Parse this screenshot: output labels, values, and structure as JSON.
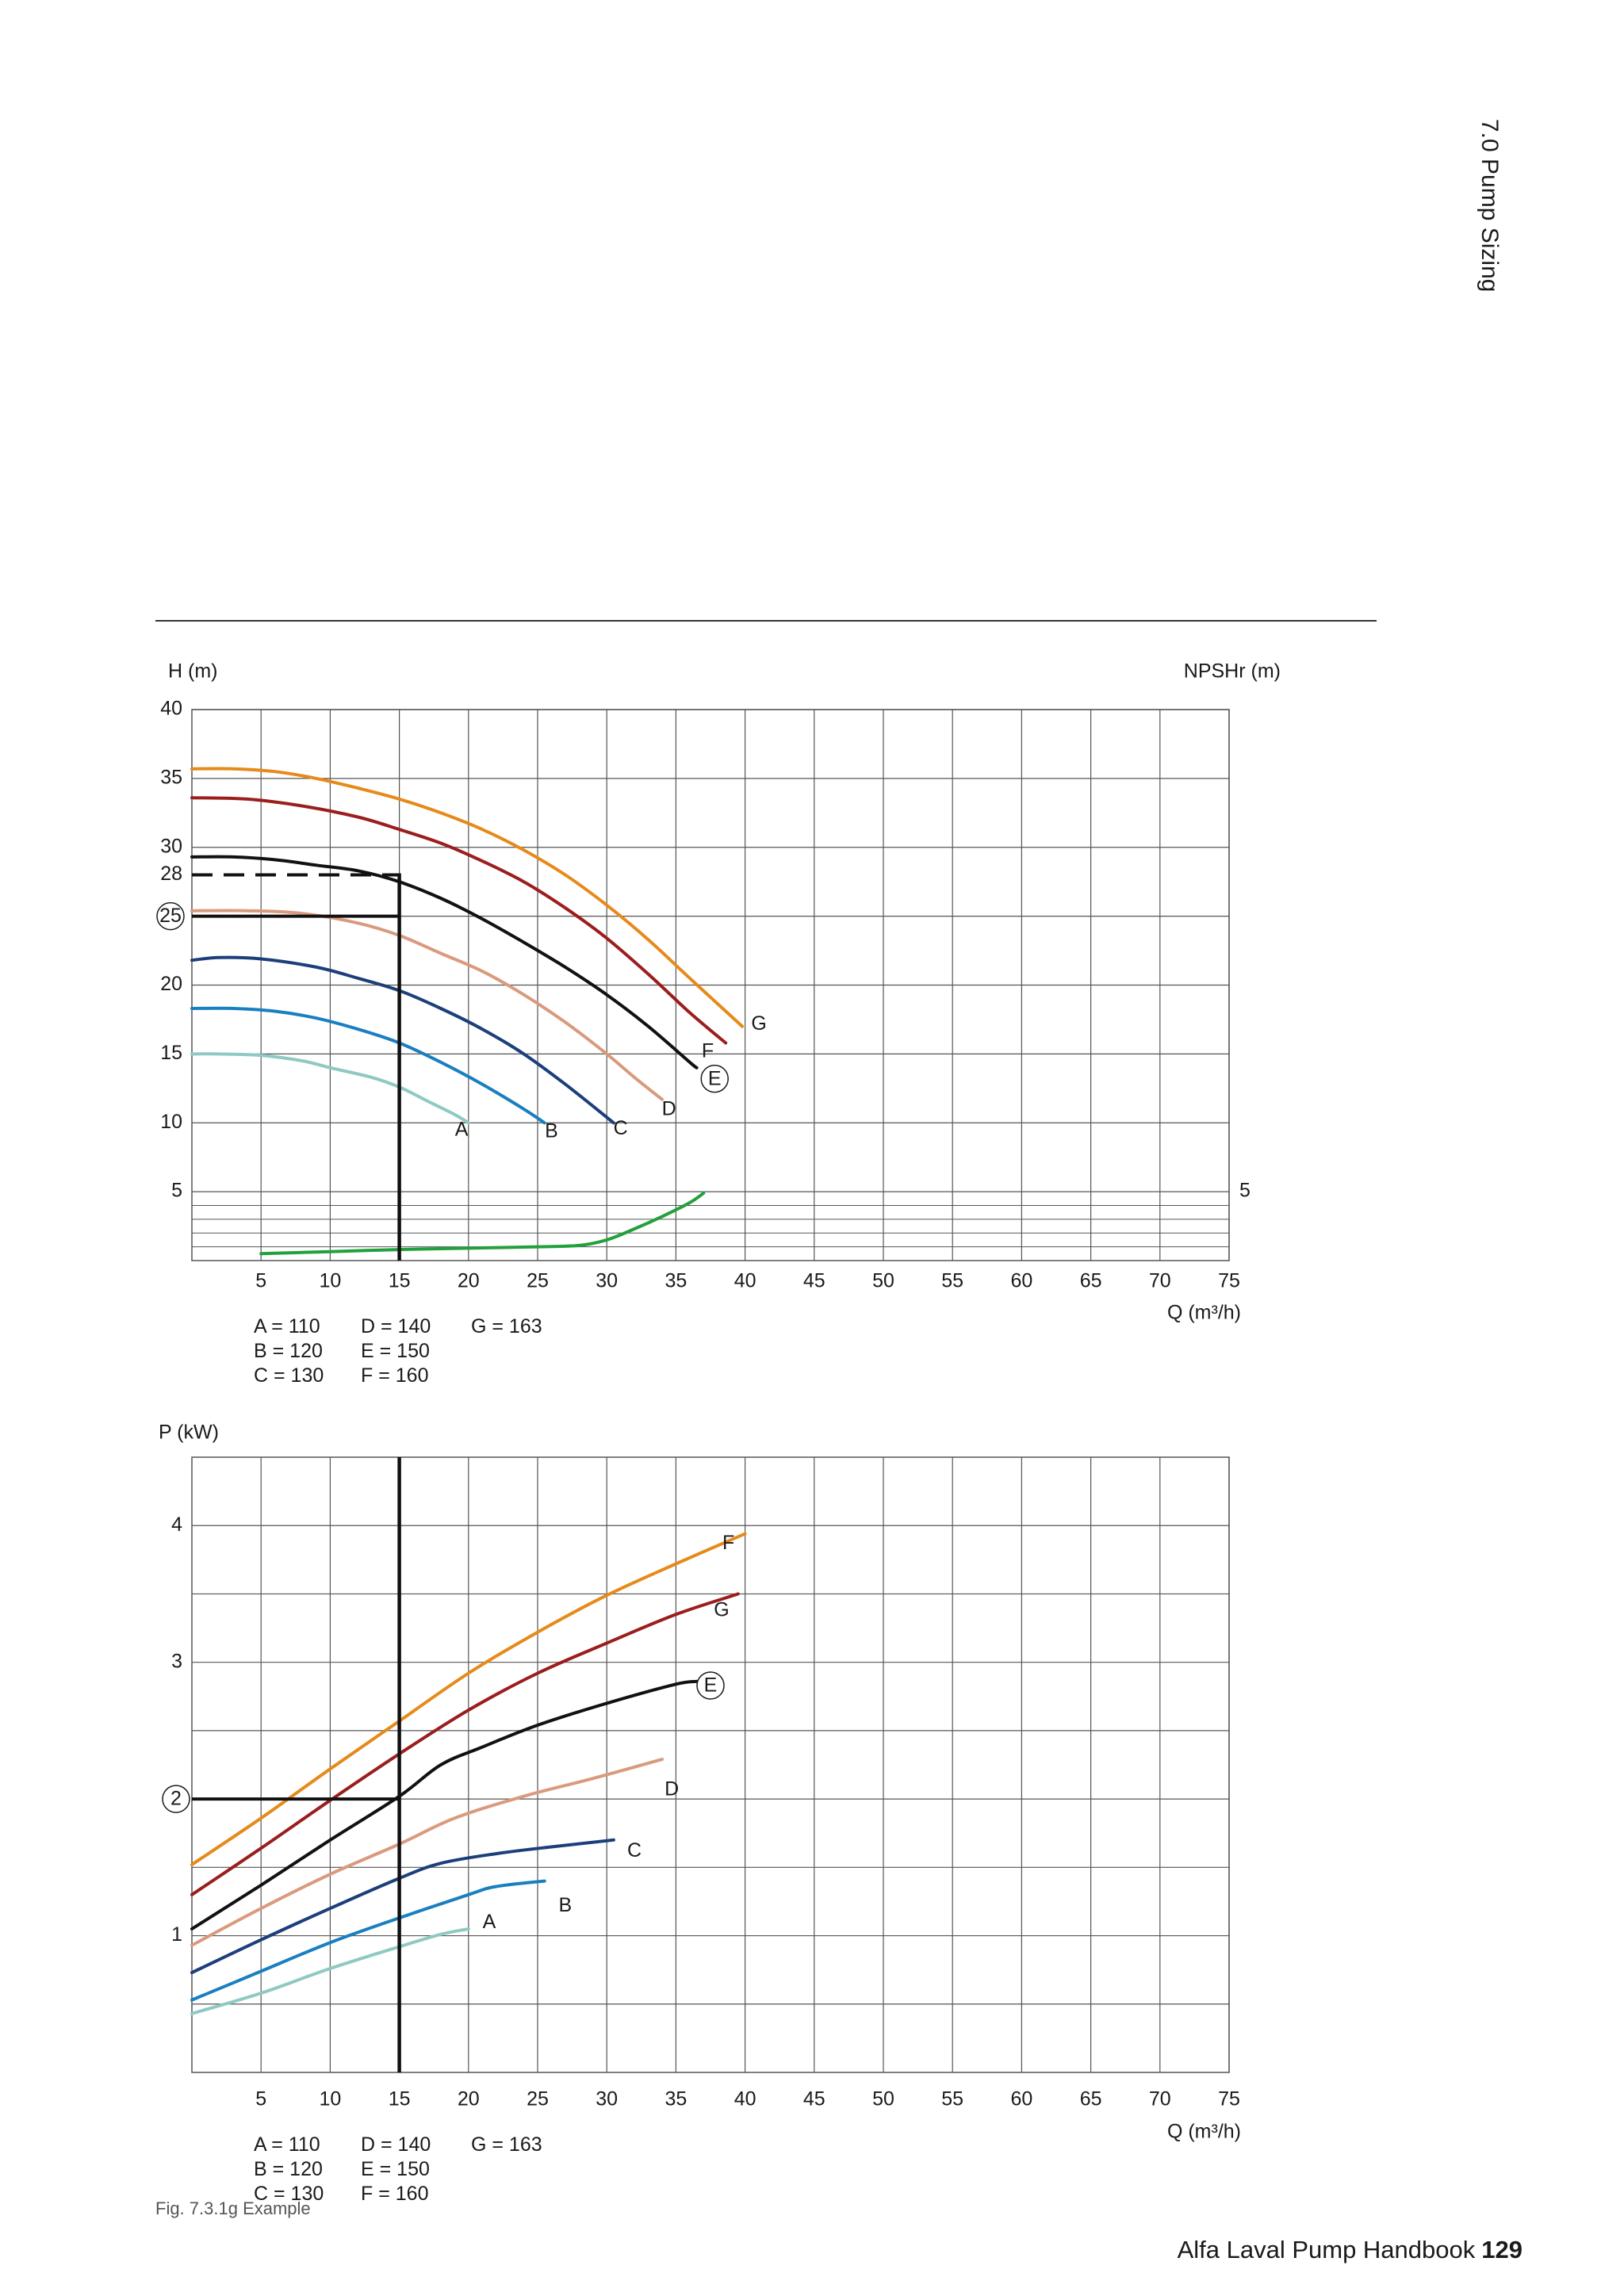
{
  "header": {
    "section_title": "7.0 Pump Sizing"
  },
  "footer": {
    "book_title": "Alfa Laval Pump Handbook",
    "page_number": "129"
  },
  "figure": {
    "caption": "Fig. 7.3.1g Example"
  },
  "legend": {
    "col1": [
      "A = 110",
      "B = 120",
      "C = 130"
    ],
    "col2": [
      "D = 140",
      "E = 150",
      "F = 160"
    ],
    "col3": [
      "G = 163"
    ]
  },
  "colors": {
    "A": "#8ec9c3",
    "B": "#1a7fc0",
    "C": "#1c3f7c",
    "D": "#d99a7e",
    "E": "#111111",
    "F": "#9c1d1d",
    "G": "#e68a1a",
    "npsh": "#22a03c",
    "grid": "#555555"
  },
  "chart_data": [
    {
      "type": "line",
      "title": "",
      "ylabel": "H (m)",
      "ylabel_right": "NPSHr (m)",
      "xlabel": "Q (m³/h)",
      "xlim": [
        0,
        75
      ],
      "ylim": [
        0,
        40
      ],
      "x_ticks": [
        5,
        10,
        15,
        20,
        25,
        30,
        35,
        40,
        45,
        50,
        55,
        60,
        65,
        70,
        75
      ],
      "y_ticks": [
        5,
        10,
        15,
        20,
        25,
        30,
        35,
        40
      ],
      "y_tick_28": "28",
      "right_tick": "5",
      "grid": true,
      "series": [
        {
          "name": "A",
          "color_key": "A",
          "label_at": [
            19.5,
            9.5
          ],
          "points": [
            [
              0,
              15
            ],
            [
              2,
              15
            ],
            [
              5,
              14.9
            ],
            [
              8,
              14.5
            ],
            [
              10,
              14
            ],
            [
              13,
              13.3
            ],
            [
              15,
              12.6
            ],
            [
              17,
              11.6
            ],
            [
              19,
              10.6
            ],
            [
              20,
              10
            ]
          ]
        },
        {
          "name": "B",
          "color_key": "B",
          "label_at": [
            26,
            9.4
          ],
          "points": [
            [
              0,
              18.3
            ],
            [
              3,
              18.3
            ],
            [
              6,
              18.1
            ],
            [
              9,
              17.6
            ],
            [
              12,
              16.8
            ],
            [
              15,
              15.8
            ],
            [
              18,
              14.4
            ],
            [
              21,
              12.8
            ],
            [
              24,
              11
            ],
            [
              25.5,
              10
            ]
          ]
        },
        {
          "name": "C",
          "color_key": "C",
          "label_at": [
            31,
            9.6
          ],
          "points": [
            [
              0,
              21.8
            ],
            [
              2,
              22
            ],
            [
              5,
              21.9
            ],
            [
              9,
              21.3
            ],
            [
              12,
              20.5
            ],
            [
              15,
              19.6
            ],
            [
              18,
              18.3
            ],
            [
              21,
              16.8
            ],
            [
              24,
              15
            ],
            [
              27,
              12.8
            ],
            [
              30.5,
              10
            ]
          ]
        },
        {
          "name": "D",
          "color_key": "D",
          "label_at": [
            34.5,
            11
          ],
          "points": [
            [
              0,
              25.4
            ],
            [
              4,
              25.4
            ],
            [
              8,
              25.2
            ],
            [
              12,
              24.5
            ],
            [
              15,
              23.6
            ],
            [
              18,
              22.3
            ],
            [
              21,
              21
            ],
            [
              24,
              19.3
            ],
            [
              27,
              17.3
            ],
            [
              30,
              15
            ],
            [
              32,
              13.3
            ],
            [
              34,
              11.7
            ]
          ]
        },
        {
          "name": "E",
          "color_key": "E",
          "label_at": [
            37.8,
            13.2
          ],
          "circled": true,
          "points": [
            [
              0,
              29.3
            ],
            [
              3,
              29.3
            ],
            [
              6,
              29.1
            ],
            [
              9,
              28.7
            ],
            [
              12,
              28.3
            ],
            [
              15,
              27.5
            ],
            [
              18,
              26.3
            ],
            [
              21,
              24.8
            ],
            [
              24,
              23.1
            ],
            [
              27,
              21.3
            ],
            [
              30,
              19.3
            ],
            [
              33,
              17
            ],
            [
              36,
              14.4
            ],
            [
              36.5,
              14
            ]
          ]
        },
        {
          "name": "F",
          "color_key": "F",
          "label_at": [
            37.3,
            15.2
          ],
          "points": [
            [
              0,
              33.6
            ],
            [
              4,
              33.5
            ],
            [
              8,
              33
            ],
            [
              12,
              32.2
            ],
            [
              15,
              31.3
            ],
            [
              18,
              30.3
            ],
            [
              21,
              29
            ],
            [
              24,
              27.5
            ],
            [
              27,
              25.6
            ],
            [
              30,
              23.4
            ],
            [
              33,
              20.8
            ],
            [
              36,
              18
            ],
            [
              38.6,
              15.8
            ]
          ]
        },
        {
          "name": "G",
          "color_key": "G",
          "label_at": [
            41,
            17.2
          ],
          "points": [
            [
              0,
              35.7
            ],
            [
              3,
              35.7
            ],
            [
              6,
              35.5
            ],
            [
              9,
              35
            ],
            [
              12,
              34.3
            ],
            [
              15,
              33.5
            ],
            [
              18,
              32.5
            ],
            [
              21,
              31.3
            ],
            [
              24,
              29.8
            ],
            [
              27,
              28
            ],
            [
              30,
              25.8
            ],
            [
              33,
              23.3
            ],
            [
              36,
              20.5
            ],
            [
              39.8,
              17
            ]
          ]
        },
        {
          "name": "",
          "color_key": "npsh",
          "axis": "NPSHr",
          "points": [
            [
              5,
              0.5
            ],
            [
              10,
              0.65
            ],
            [
              15,
              0.8
            ],
            [
              20,
              0.9
            ],
            [
              25,
              1.0
            ],
            [
              28,
              1.1
            ],
            [
              30,
              1.5
            ],
            [
              32,
              2.3
            ],
            [
              34,
              3.2
            ],
            [
              36,
              4.2
            ],
            [
              37,
              4.9
            ]
          ]
        }
      ],
      "annotations": {
        "operating_q": 15,
        "head_dashed": 28,
        "head_solid": 25,
        "head_solid_label": "25"
      }
    },
    {
      "type": "line",
      "title": "",
      "ylabel": "P (kW)",
      "xlabel": "Q (m³/h)",
      "xlim": [
        0,
        75
      ],
      "ylim": [
        0,
        4.5
      ],
      "x_ticks": [
        5,
        10,
        15,
        20,
        25,
        30,
        35,
        40,
        45,
        50,
        55,
        60,
        65,
        70,
        75
      ],
      "y_ticks": [
        1,
        3,
        4
      ],
      "grid": true,
      "series": [
        {
          "name": "A",
          "color_key": "A",
          "label_at": [
            21.5,
            1.1
          ],
          "points": [
            [
              0,
              0.43
            ],
            [
              5,
              0.58
            ],
            [
              10,
              0.76
            ],
            [
              15,
              0.92
            ],
            [
              18,
              1.01
            ],
            [
              20,
              1.05
            ]
          ]
        },
        {
          "name": "B",
          "color_key": "B",
          "label_at": [
            27,
            1.22
          ],
          "points": [
            [
              0,
              0.53
            ],
            [
              5,
              0.74
            ],
            [
              10,
              0.95
            ],
            [
              15,
              1.13
            ],
            [
              20,
              1.3
            ],
            [
              22,
              1.36
            ],
            [
              25.5,
              1.4
            ]
          ]
        },
        {
          "name": "C",
          "color_key": "C",
          "label_at": [
            32,
            1.62
          ],
          "points": [
            [
              0,
              0.73
            ],
            [
              5,
              0.97
            ],
            [
              10,
              1.2
            ],
            [
              15,
              1.42
            ],
            [
              18,
              1.53
            ],
            [
              22,
              1.6
            ],
            [
              26,
              1.65
            ],
            [
              30.5,
              1.7
            ]
          ]
        },
        {
          "name": "D",
          "color_key": "D",
          "label_at": [
            34.7,
            2.07
          ],
          "points": [
            [
              0,
              0.93
            ],
            [
              5,
              1.2
            ],
            [
              10,
              1.45
            ],
            [
              15,
              1.67
            ],
            [
              19,
              1.86
            ],
            [
              24,
              2.02
            ],
            [
              29,
              2.15
            ],
            [
              34,
              2.29
            ]
          ]
        },
        {
          "name": "E",
          "color_key": "E",
          "label_at": [
            37.5,
            2.83
          ],
          "circled": true,
          "points": [
            [
              0,
              1.05
            ],
            [
              5,
              1.37
            ],
            [
              10,
              1.7
            ],
            [
              15,
              2.02
            ],
            [
              18,
              2.25
            ],
            [
              21,
              2.38
            ],
            [
              25,
              2.54
            ],
            [
              30,
              2.7
            ],
            [
              35,
              2.84
            ],
            [
              36.5,
              2.86
            ]
          ]
        },
        {
          "name": "G",
          "color_key": "F",
          "label_at": [
            38.3,
            3.38
          ],
          "points": [
            [
              0,
              1.3
            ],
            [
              5,
              1.64
            ],
            [
              10,
              1.99
            ],
            [
              15,
              2.33
            ],
            [
              20,
              2.65
            ],
            [
              25,
              2.92
            ],
            [
              30,
              3.14
            ],
            [
              35,
              3.35
            ],
            [
              39.5,
              3.5
            ]
          ]
        },
        {
          "name": "F",
          "color_key": "G",
          "label_at": [
            38.8,
            3.87
          ],
          "points": [
            [
              0,
              1.52
            ],
            [
              5,
              1.86
            ],
            [
              10,
              2.22
            ],
            [
              15,
              2.57
            ],
            [
              20,
              2.92
            ],
            [
              25,
              3.22
            ],
            [
              30,
              3.49
            ],
            [
              35,
              3.72
            ],
            [
              40,
              3.94
            ]
          ]
        }
      ],
      "annotations": {
        "operating_q": 15,
        "power": 2,
        "power_label": "2"
      }
    }
  ]
}
